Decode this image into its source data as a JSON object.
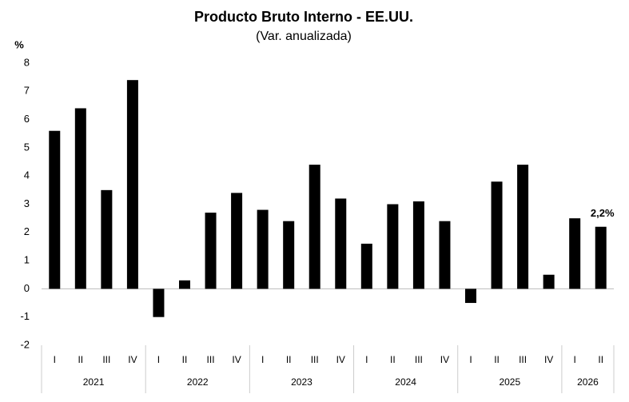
{
  "chart_data": {
    "type": "bar",
    "title": "Producto Bruto Interno - EE.UU.",
    "subtitle": "(Var. anualizada)",
    "y_label": "%",
    "groups": [
      {
        "name": "2021",
        "categories": [
          "I",
          "II",
          "III",
          "IV"
        ]
      },
      {
        "name": "2022",
        "categories": [
          "I",
          "II",
          "III",
          "IV"
        ]
      },
      {
        "name": "2023",
        "categories": [
          "I",
          "II",
          "III",
          "IV"
        ]
      },
      {
        "name": "2024",
        "categories": [
          "I",
          "II",
          "III",
          "IV"
        ]
      },
      {
        "name": "2025",
        "categories": [
          "I",
          "II",
          "III",
          "IV"
        ]
      },
      {
        "name": "2026",
        "categories": [
          "I",
          "II"
        ]
      }
    ],
    "values": [
      5.6,
      6.4,
      3.5,
      7.4,
      -1.0,
      0.3,
      2.7,
      3.4,
      2.8,
      2.4,
      4.4,
      3.2,
      1.6,
      3.0,
      3.1,
      2.4,
      -0.5,
      3.8,
      4.4,
      0.5,
      2.5,
      2.2
    ],
    "value_labels": [
      null,
      null,
      null,
      null,
      null,
      null,
      null,
      null,
      null,
      null,
      null,
      null,
      null,
      null,
      null,
      null,
      null,
      null,
      null,
      null,
      null,
      "2,2%"
    ],
    "color": "#000000",
    "ylim": [
      -2,
      8
    ],
    "yticks": [
      -2,
      -1,
      0,
      1,
      2,
      3,
      4,
      5,
      6,
      7,
      8
    ],
    "grid": false
  }
}
